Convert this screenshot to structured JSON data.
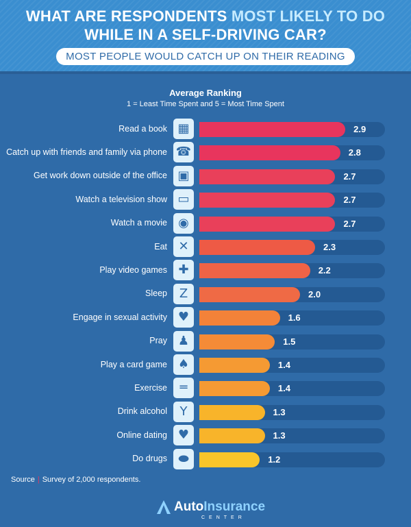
{
  "header": {
    "title_line1_a": "WHAT ARE RESPONDENTS",
    "title_line1_b": "MOST LIKELY TO DO",
    "title_line2": "WHILE IN A SELF-DRIVING CAR?",
    "subtitle": "MOST PEOPLE WOULD CATCH UP ON THEIR READING"
  },
  "chart_data": {
    "type": "bar",
    "orientation": "horizontal",
    "title": "Average Ranking",
    "subtitle": "1 = Least Time Spent and 5 = Most Time Spent",
    "xlim": [
      0,
      3.3
    ],
    "categories": [
      "Read a book",
      "Catch up with friends and family via phone",
      "Get work down outside of the office",
      "Watch a television show",
      "Watch a movie",
      "Eat",
      "Play video games",
      "Sleep",
      "Engage in sexual activity",
      "Pray",
      "Play a card game",
      "Exercise",
      "Drink alcohol",
      "Online dating",
      "Do drugs"
    ],
    "values": [
      2.9,
      2.8,
      2.7,
      2.7,
      2.7,
      2.3,
      2.2,
      2.0,
      1.6,
      1.5,
      1.4,
      1.4,
      1.3,
      1.3,
      1.2
    ],
    "value_labels": [
      "2.9",
      "2.8",
      "2.7",
      "2.7",
      "2.7",
      "2.3",
      "2.2",
      "2.0",
      "1.6",
      "1.5",
      "1.4",
      "1.4",
      "1.3",
      "1.3",
      "1.2"
    ],
    "bar_colors": [
      "#e8355d",
      "#e8355d",
      "#e9405a",
      "#e9405a",
      "#e9405a",
      "#ee5a45",
      "#ef6346",
      "#ef6a45",
      "#f38239",
      "#f58b37",
      "#f59a33",
      "#f59a33",
      "#f8b42a",
      "#f8b42a",
      "#f9c52a"
    ],
    "icons": [
      "calculator-icon",
      "phone-icon",
      "computer-icon",
      "tv-icon",
      "film-reel-icon",
      "fork-knife-icon",
      "gamepad-icon",
      "sleep-icon",
      "heart-icon",
      "pray-icon",
      "cards-icon",
      "dumbbell-icon",
      "cocktail-icon",
      "laptop-heart-icon",
      "pill-icon"
    ],
    "icon_glyphs": [
      "▦",
      "☎",
      "▣",
      "▭",
      "◉",
      "✕",
      "✚",
      "Z",
      "♥",
      "♟",
      "♠",
      "═",
      "Y",
      "♥",
      "⬬"
    ]
  },
  "footer": {
    "source_label": "Source",
    "source_text": "Survey of 2,000 respondents.",
    "logo_a": "Auto",
    "logo_b": "Insurance",
    "logo_c": "CENTER"
  },
  "colors": {
    "background": "#2f6ba8",
    "header": "#3a8ed0",
    "track": "#245a93"
  }
}
